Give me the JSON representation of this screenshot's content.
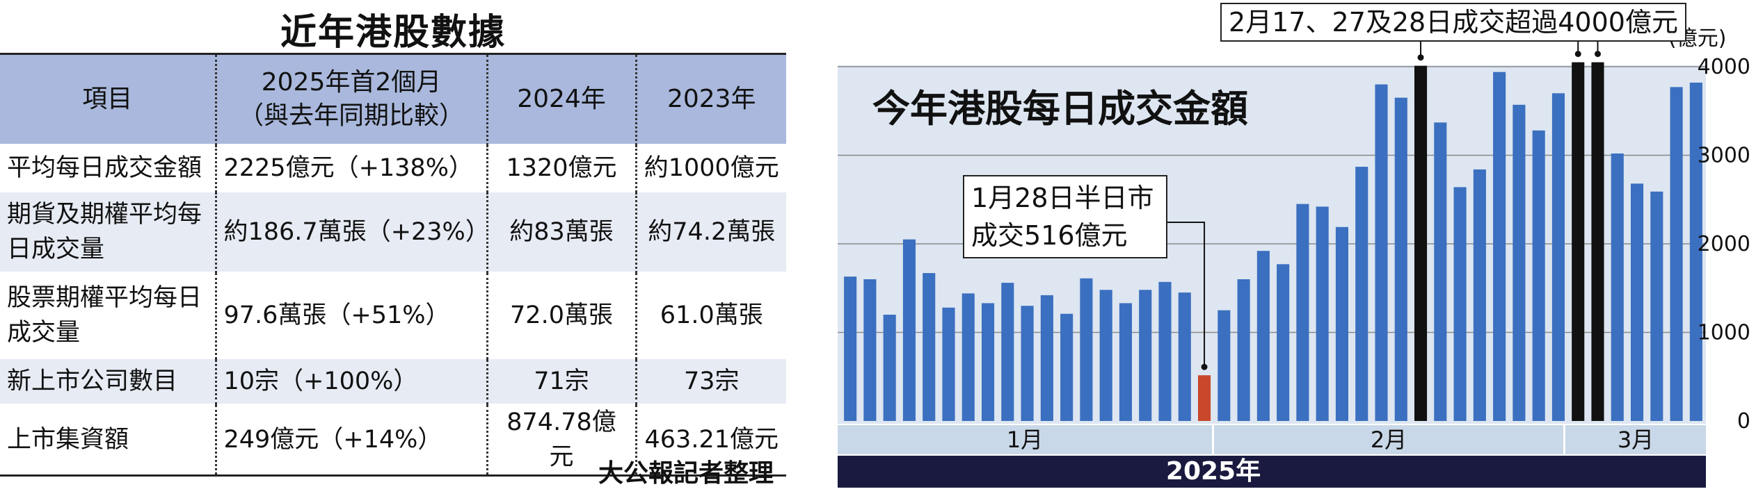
{
  "table_panel": {
    "title": "近年港股數據",
    "headers": [
      "項目",
      "2025年首2個月\n（與去年同期比較）",
      "2024年",
      "2023年"
    ],
    "rows": [
      [
        "平均每日成交金額",
        "2225億元（+138%）",
        "1320億元",
        "約1000億元"
      ],
      [
        "期貨及期權平均每日成交量",
        "約186.7萬張（+23%）",
        "約83萬張",
        "約74.2萬張"
      ],
      [
        "股票期權平均每日成交量",
        "97.6萬張（+51%）",
        "72.0萬張",
        "61.0萬張"
      ],
      [
        "新上市公司數目",
        "10宗（+100%）",
        "71宗",
        "73宗"
      ],
      [
        "上市集資額",
        "249億元（+14%）",
        "874.78億元",
        "463.21億元"
      ]
    ],
    "credit": "大公報記者整理"
  },
  "chart_panel": {
    "title": "今年港股每日成交金額",
    "unit_label": "(億元)",
    "callout_top": "2月17、27及28日成交超過4000億元",
    "callout_jan": "1月28日半日市\n成交516億元",
    "months": [
      "1月",
      "2月",
      "3月"
    ],
    "year_label": "2025年",
    "colors": {
      "normal": "#3b6fc0",
      "half_day": "#c9472b",
      "over_4000": "#111111",
      "title_bar": "#1a1a40"
    }
  },
  "chart_data": {
    "type": "bar",
    "xlabel": "2025年",
    "ylabel": "(億元)",
    "ylim": [
      0,
      4000
    ],
    "yticks": [
      0,
      1000,
      2000,
      3000,
      4000
    ],
    "grid": true,
    "categories": [
      "1月",
      "1月",
      "1月",
      "1月",
      "1月",
      "1月",
      "1月",
      "1月",
      "1月",
      "1月",
      "1月",
      "1月",
      "1月",
      "1月",
      "1月",
      "1月",
      "1月",
      "1月",
      "1月",
      "2月",
      "2月",
      "2月",
      "2月",
      "2月",
      "2月",
      "2月",
      "2月",
      "2月",
      "2月",
      "2月",
      "2月",
      "2月",
      "2月",
      "2月",
      "2月",
      "2月",
      "2月",
      "2月",
      "2月",
      "3月",
      "3月",
      "3月",
      "3月",
      "3月"
    ],
    "values": [
      1630,
      1600,
      1200,
      2050,
      1670,
      1280,
      1440,
      1330,
      1560,
      1300,
      1420,
      1210,
      1610,
      1480,
      1330,
      1480,
      1570,
      1450,
      516,
      1250,
      1600,
      1920,
      1770,
      2450,
      2420,
      2190,
      2870,
      3800,
      3650,
      4010,
      3370,
      2640,
      2840,
      3940,
      3570,
      3280,
      3700,
      4050,
      4050,
      3020,
      2680,
      2590,
      3770,
      3820
    ],
    "highlights": [
      {
        "index": 18,
        "label": "1月28日半日市",
        "value": 516,
        "color": "half_day"
      },
      {
        "index": 29,
        "value": 4010,
        "color": "over_4000"
      },
      {
        "index": 37,
        "value": 4050,
        "color": "over_4000"
      },
      {
        "index": 38,
        "value": 4050,
        "color": "over_4000"
      }
    ]
  }
}
